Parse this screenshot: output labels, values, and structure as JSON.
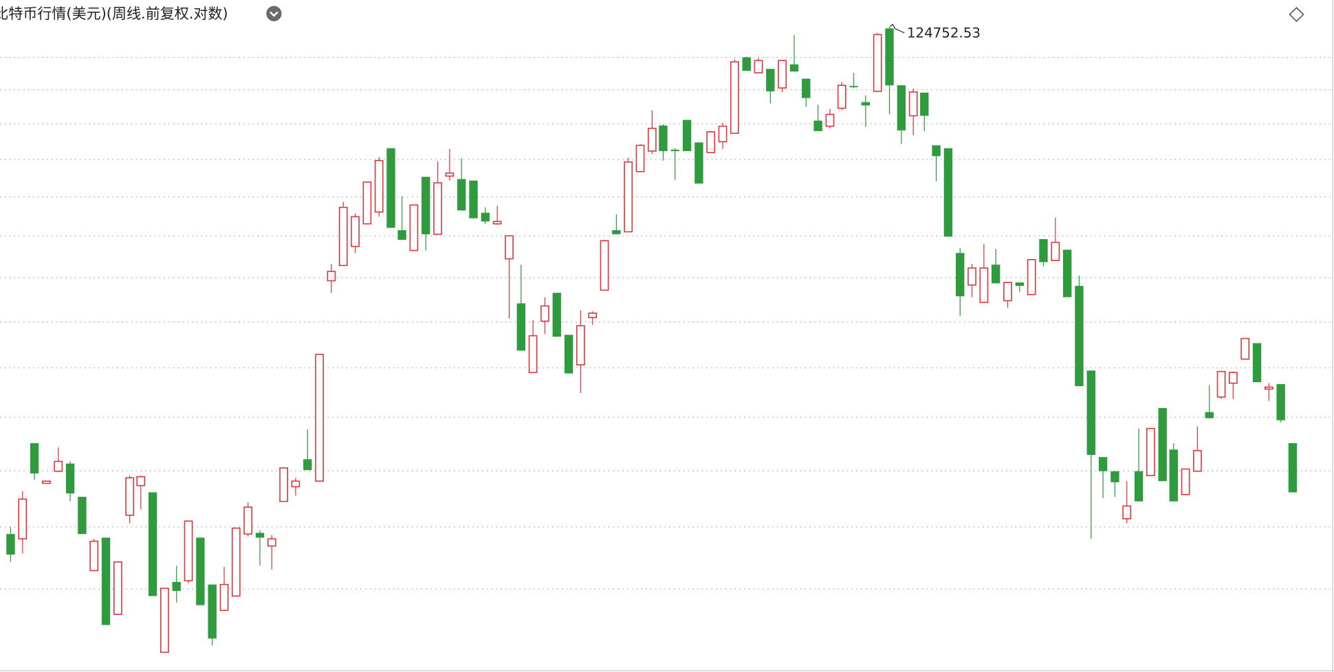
{
  "chart_data": {
    "type": "candlestick",
    "title": "比特币行情(美元)(周线.前复权.对数)",
    "log": true,
    "grid": true,
    "ylim": [
      53800,
      129200
    ],
    "yticks": [
      60000,
      65000,
      70000,
      75000,
      80000,
      85000,
      90000,
      95000,
      100000,
      105000,
      110000,
      115000,
      120000
    ],
    "up_color": "#e0353d",
    "down_color": "#2f9a3e",
    "open": [
      64400,
      64000,
      72500,
      68800,
      69900,
      70600,
      67600,
      61400,
      64100,
      58000,
      66000,
      68600,
      68000,
      55200,
      60500,
      60600,
      64100,
      60300,
      58300,
      59400,
      64400,
      64500,
      63400,
      67200,
      68500,
      71000,
      69000,
      89600,
      91400,
      93700,
      96500,
      98000,
      106500,
      95700,
      93200,
      102600,
      95200,
      102700,
      102300,
      102100,
      97900,
      96500,
      92200,
      87000,
      79500,
      85000,
      88200,
      83500,
      80300,
      85400,
      88500,
      95700,
      95500,
      103300,
      106100,
      109700,
      106300,
      110500,
      107300,
      105900,
      107400,
      108600,
      119900,
      117500,
      118100,
      115200,
      118800,
      116600,
      110400,
      109600,
      112200,
      115500,
      113100,
      114700,
      124500,
      115600,
      111100,
      114500,
      106900,
      106500,
      92900,
      89100,
      87100,
      91500,
      87300,
      89400,
      88000,
      94600,
      92000,
      93300,
      89000,
      79700,
      71200,
      69900,
      65700,
      69900,
      69500,
      75900,
      71900,
      67800,
      69900,
      75500,
      77000,
      78400,
      80900,
      82600,
      77800,
      78300,
      72500
    ],
    "high": [
      65000,
      68100,
      72500,
      69000,
      72100,
      70800,
      67600,
      64000,
      64100,
      62100,
      69500,
      69500,
      68000,
      60000,
      61800,
      65500,
      64100,
      60300,
      61700,
      64900,
      67100,
      64700,
      64300,
      70200,
      69300,
      73800,
      81400,
      91600,
      99300,
      97800,
      101900,
      105300,
      106500,
      100000,
      98900,
      102600,
      104700,
      106400,
      105100,
      102100,
      98600,
      98800,
      95000,
      91500,
      85100,
      87700,
      88200,
      83500,
      86200,
      86100,
      94500,
      97700,
      105200,
      107100,
      111900,
      109900,
      106500,
      110500,
      107300,
      108900,
      110100,
      119600,
      120000,
      119800,
      118100,
      119500,
      123400,
      116600,
      112700,
      112100,
      116100,
      117500,
      114100,
      123800,
      124752.53,
      115600,
      115100,
      114500,
      106900,
      106500,
      93500,
      91600,
      94000,
      93400,
      89400,
      89400,
      92100,
      94600,
      97300,
      93300,
      90200,
      79700,
      71200,
      69900,
      69000,
      73900,
      73900,
      75900,
      72500,
      70100,
      74100,
      78200,
      79600,
      79600,
      83100,
      82600,
      78400,
      78300,
      72500
    ],
    "low": [
      62100,
      62800,
      69100,
      68800,
      69800,
      67200,
      64400,
      61400,
      57200,
      58000,
      65300,
      66500,
      59400,
      55200,
      58900,
      60400,
      58700,
      55700,
      58300,
      59400,
      64200,
      61800,
      61500,
      67200,
      67700,
      70000,
      69000,
      88200,
      91400,
      92900,
      96500,
      97400,
      96000,
      94500,
      93200,
      93200,
      95100,
      102100,
      98200,
      97200,
      96500,
      96400,
      85300,
      81800,
      79500,
      83600,
      83300,
      79400,
      77400,
      84600,
      88500,
      95200,
      95500,
      103300,
      105700,
      104800,
      102200,
      106100,
      101700,
      105900,
      106400,
      108600,
      117800,
      117500,
      112900,
      114600,
      117700,
      112400,
      108900,
      109300,
      111900,
      115200,
      109500,
      114600,
      111300,
      107100,
      108300,
      108900,
      102000,
      94900,
      85600,
      87700,
      87100,
      89300,
      86500,
      88300,
      88000,
      91300,
      92000,
      87700,
      78100,
      64000,
      67500,
      67600,
      65300,
      67200,
      69500,
      69000,
      67200,
      67800,
      69900,
      74900,
      76800,
      76800,
      80900,
      78500,
      76600,
      74500,
      68000
    ],
    "close": [
      62700,
      67400,
      69700,
      69000,
      70800,
      67900,
      64400,
      63800,
      57200,
      62100,
      69300,
      69400,
      59400,
      60000,
      59800,
      65500,
      58700,
      56200,
      60300,
      64900,
      66700,
      64100,
      64000,
      70200,
      69000,
      70000,
      81400,
      90700,
      98600,
      97400,
      101900,
      104800,
      96000,
      94500,
      98900,
      95200,
      101800,
      103100,
      98200,
      97200,
      96800,
      96800,
      95000,
      81800,
      83400,
      86700,
      83300,
      79400,
      84500,
      85900,
      94400,
      95200,
      104600,
      106900,
      109300,
      106100,
      106100,
      106100,
      101700,
      108800,
      109600,
      119200,
      117800,
      119400,
      114700,
      119400,
      117700,
      113700,
      108900,
      111300,
      115600,
      115500,
      112600,
      123500,
      115600,
      109000,
      114600,
      111100,
      105400,
      94900,
      87800,
      91100,
      91100,
      89300,
      89400,
      89000,
      92100,
      91800,
      94200,
      87700,
      78100,
      71400,
      69900,
      68900,
      66800,
      67200,
      73900,
      69000,
      67200,
      70100,
      71800,
      74900,
      79600,
      79500,
      83100,
      78500,
      78000,
      74700,
      68000
    ]
  }
}
